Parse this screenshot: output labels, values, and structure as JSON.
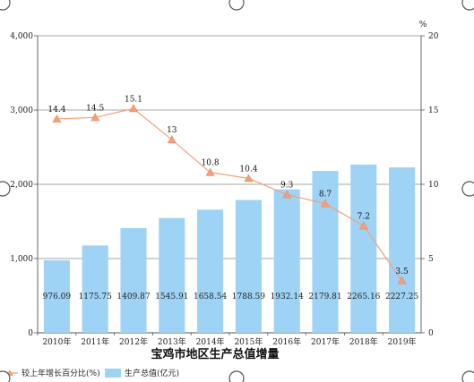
{
  "chart_data": {
    "type": "bar",
    "categories": [
      "2010年",
      "2011年",
      "2012年",
      "2013年",
      "2014年",
      "2015年",
      "2016年",
      "2017年",
      "2018年",
      "2019年"
    ],
    "series": [
      {
        "name": "生产总值(亿元)",
        "type": "bar",
        "axis": "left",
        "color": "#9fd3f5",
        "values": [
          976.09,
          1175.75,
          1409.87,
          1545.91,
          1658.54,
          1788.59,
          1932.14,
          2179.81,
          2265.16,
          2227.25
        ],
        "labels": [
          "976.09",
          "1175.75",
          "1409.87",
          "1545.91",
          "1658.54",
          "1788.59",
          "1932.14",
          "2179.81",
          "2265.16",
          "2227.25"
        ]
      },
      {
        "name": "较上年增长百分比(%)",
        "type": "line",
        "axis": "right",
        "color": "#f2a07a",
        "marker": "triangle",
        "values": [
          14.4,
          14.5,
          15.1,
          13,
          10.8,
          10.4,
          9.3,
          8.7,
          7.2,
          3.5
        ],
        "labels": [
          "14.4",
          "14.5",
          "15.1",
          "13",
          "10.8",
          "10.4",
          "9.3",
          "8.7",
          "7.2",
          "3.5"
        ]
      }
    ],
    "xlabel": "宝鸡市地区生产总值增量",
    "ylabel": "",
    "y2label": "%",
    "ylim": [
      0,
      4000
    ],
    "y2lim": [
      0,
      20
    ],
    "yticks": [
      "0",
      "1,000",
      "2,000",
      "3,000",
      "4,000"
    ],
    "y2ticks": [
      "0",
      "5",
      "10",
      "15",
      "20"
    ],
    "grid": true,
    "legend": "bottom-left"
  }
}
